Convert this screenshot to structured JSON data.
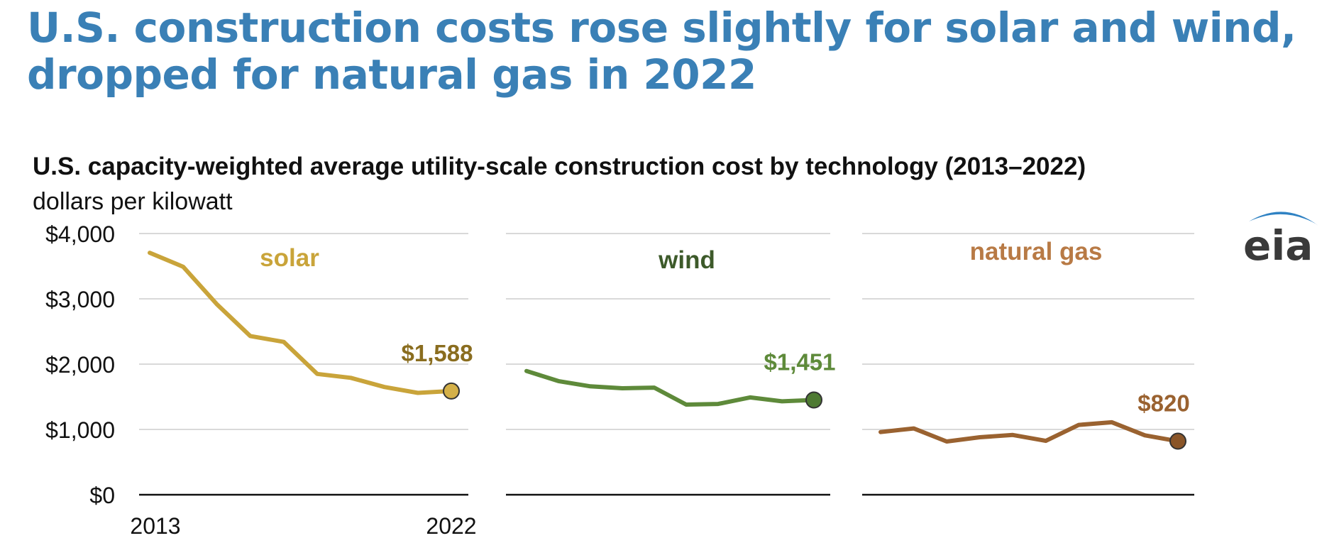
{
  "headline": {
    "line1": "U.S. construction costs rose slightly for solar and wind,",
    "line2": "dropped for natural gas in 2022"
  },
  "logo": {
    "text": "eia",
    "icon": "eia-logo"
  },
  "chart_data": {
    "type": "line",
    "title": "U.S. capacity-weighted average utility-scale construction cost by technology (2013–2022)",
    "ylabel": "dollars per kilowatt",
    "ylim": [
      0,
      4000
    ],
    "y_ticks": [
      {
        "value": 0,
        "label": "$0"
      },
      {
        "value": 1000,
        "label": "$1,000"
      },
      {
        "value": 2000,
        "label": "$2,000"
      },
      {
        "value": 3000,
        "label": "$3,000"
      },
      {
        "value": 4000,
        "label": "$4,000"
      }
    ],
    "x": [
      2013,
      2014,
      2015,
      2016,
      2017,
      2018,
      2019,
      2020,
      2021,
      2022
    ],
    "x_tick_labels": [
      "2013",
      "2022"
    ],
    "grid": true,
    "series": [
      {
        "name": "solar",
        "color": "#c9a43a",
        "label_color": "#c9a43a",
        "end_label": "$1,588",
        "end_label_color": "#8a6d1f",
        "marker_color": "#d4b048",
        "values": [
          3705,
          3490,
          2920,
          2430,
          2340,
          1850,
          1790,
          1650,
          1560,
          1588
        ]
      },
      {
        "name": "wind",
        "color": "#5e8a3a",
        "label_color": "#3d5a2a",
        "end_label": "$1,451",
        "end_label_color": "#5e8a3a",
        "marker_color": "#4e7a32",
        "values": [
          1895,
          1740,
          1660,
          1630,
          1640,
          1380,
          1390,
          1490,
          1430,
          1451
        ]
      },
      {
        "name": "natural gas",
        "color": "#9a6230",
        "label_color": "#b87a45",
        "end_label": "$820",
        "end_label_color": "#9a6230",
        "marker_color": "#8a5528",
        "values": [
          960,
          1015,
          815,
          880,
          915,
          825,
          1070,
          1110,
          910,
          820
        ]
      }
    ]
  }
}
